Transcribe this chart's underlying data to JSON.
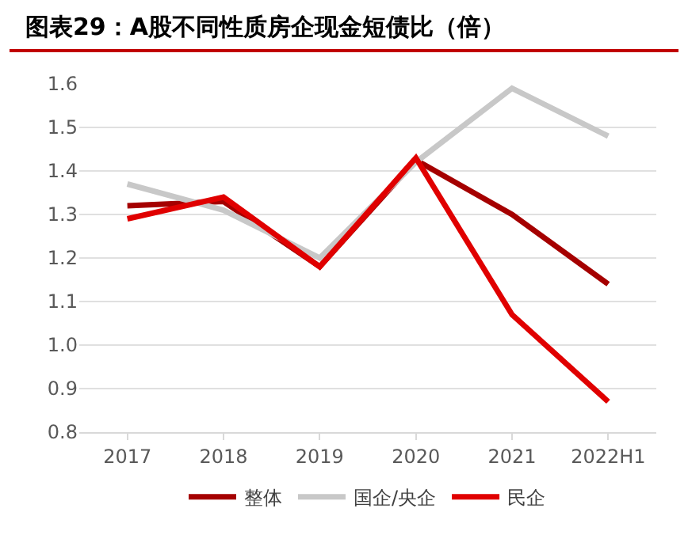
{
  "chart_data": {
    "type": "line",
    "title": "图表29：A股不同性质房企现金短债比（倍）",
    "categories": [
      "2017",
      "2018",
      "2019",
      "2020",
      "2021",
      "2022H1"
    ],
    "series": [
      {
        "name": "整体",
        "color": "#a50000",
        "values": [
          1.32,
          1.33,
          1.18,
          1.425,
          1.3,
          1.14
        ]
      },
      {
        "name": "国企/央企",
        "color": "#c8c8c8",
        "values": [
          1.37,
          1.31,
          1.2,
          1.42,
          1.59,
          1.48
        ]
      },
      {
        "name": "民企",
        "color": "#e00000",
        "values": [
          1.29,
          1.34,
          1.18,
          1.43,
          1.07,
          0.87
        ]
      }
    ],
    "ylim": [
      0.8,
      1.6
    ],
    "yticks": [
      {
        "value": 0.8,
        "label": "0.8"
      },
      {
        "value": 0.9,
        "label": "0.9"
      },
      {
        "value": 1,
        "label": "1.0"
      },
      {
        "value": 1.1,
        "label": "1.1"
      },
      {
        "value": 1.2,
        "label": "1.2"
      },
      {
        "value": 1.3,
        "label": "1.3"
      },
      {
        "value": 1.4,
        "label": "1.4"
      },
      {
        "value": 1.5,
        "label": "1.5"
      },
      {
        "value": 1.6,
        "label": "1.6"
      }
    ],
    "grid": "y",
    "legend": "bottom",
    "marker": "none",
    "line_style": "solid"
  }
}
